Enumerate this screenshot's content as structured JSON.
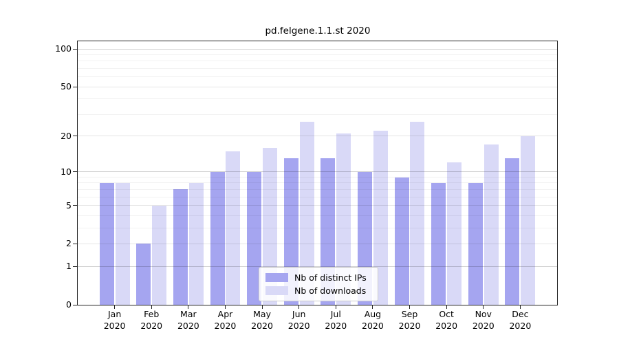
{
  "chart_data": {
    "type": "bar",
    "title": "pd.felgene.1.1.st 2020",
    "categories": [
      "Jan",
      "Feb",
      "Mar",
      "Apr",
      "May",
      "Jun",
      "Jul",
      "Aug",
      "Sep",
      "Oct",
      "Nov",
      "Dec"
    ],
    "year_label": "2020",
    "series": [
      {
        "name": "Nb of distinct IPs",
        "color": "#a5a5f0",
        "values": [
          8,
          2,
          7,
          10,
          10,
          13,
          13,
          10,
          9,
          8,
          8,
          13
        ]
      },
      {
        "name": "Nb of downloads",
        "color": "#d9d9f7",
        "values": [
          8,
          5,
          8,
          15,
          16,
          26,
          21,
          22,
          26,
          12,
          17,
          20
        ]
      }
    ],
    "yscale": "log1p",
    "yticks": [
      0,
      1,
      2,
      5,
      10,
      20,
      50,
      100
    ],
    "minor_yticks": [
      3,
      4,
      6,
      7,
      8,
      9,
      30,
      40,
      60,
      70,
      80,
      90
    ],
    "decade_yticks": [
      1,
      10,
      100
    ],
    "ylim": [
      0,
      115
    ],
    "grid": true,
    "legend_position": "lower center"
  }
}
